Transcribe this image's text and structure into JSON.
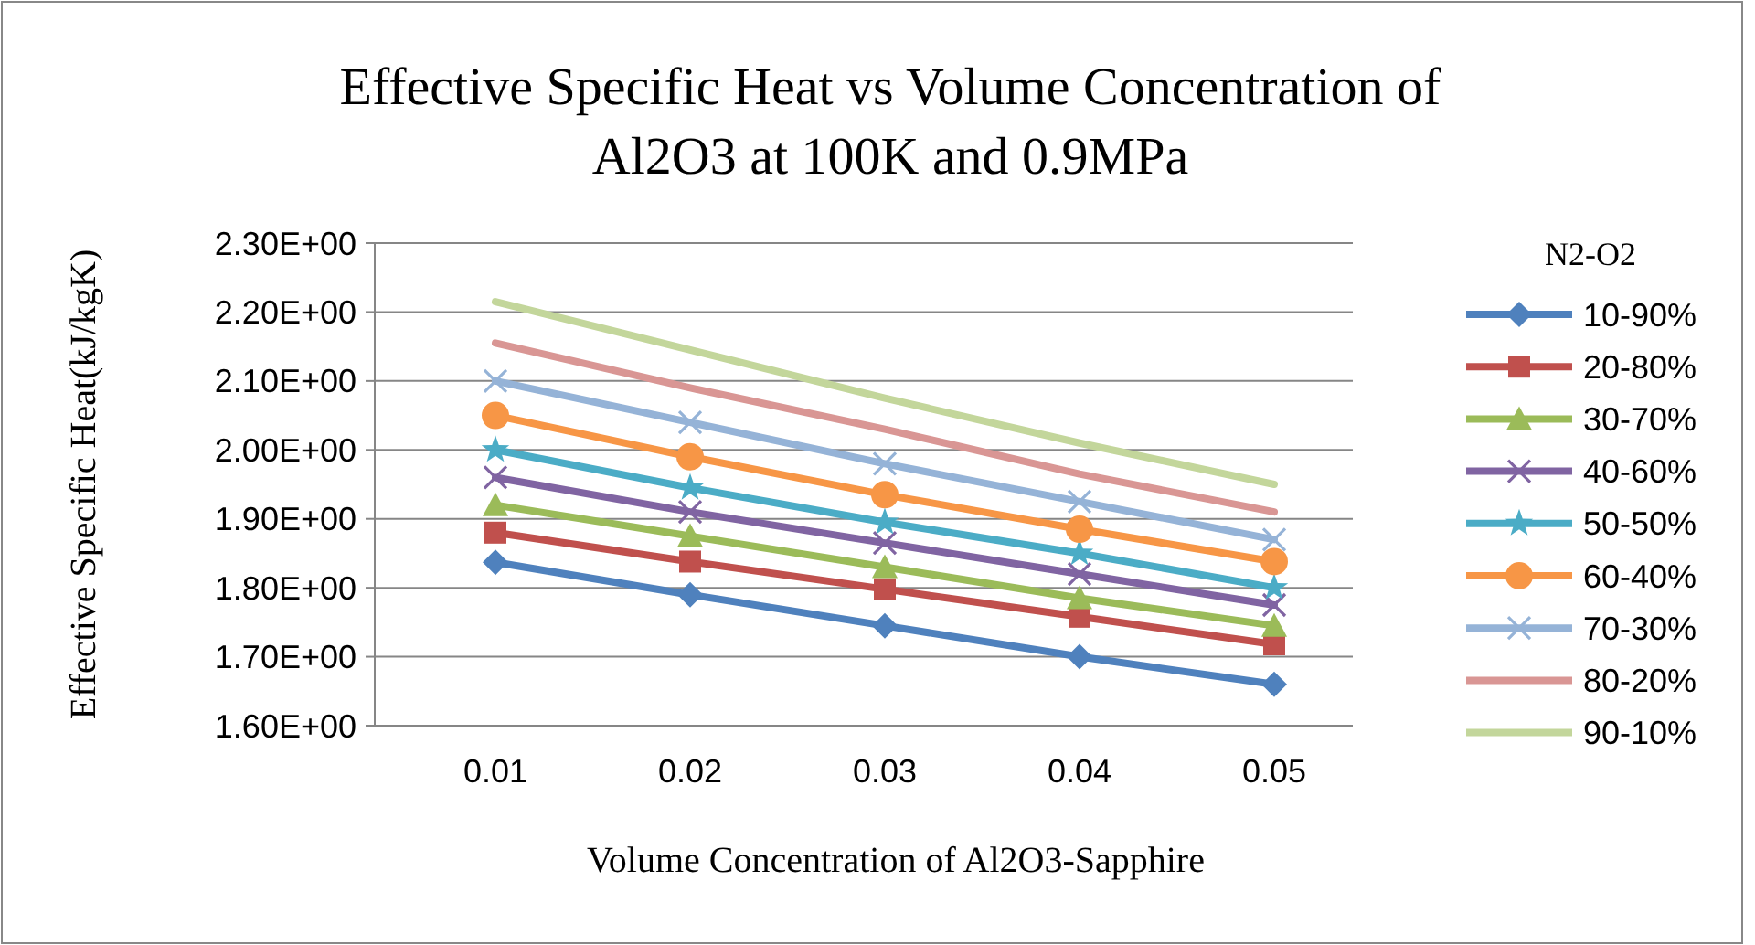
{
  "chart_data": {
    "type": "line",
    "title": "Effective Specific Heat vs Volume Concentration of Al2O3 at 100K and 0.9MPa",
    "xlabel": "Volume Concentration of Al2O3-Sapphire",
    "ylabel": "Effective Specific Heat(kJ/kgK)",
    "legend_title": "N2-O2",
    "categories": [
      "0.01",
      "0.02",
      "0.03",
      "0.04",
      "0.05"
    ],
    "series": [
      {
        "name": "10-90%",
        "color": "#4f81bd",
        "marker": "diamond",
        "values": [
          1.837,
          1.79,
          1.745,
          1.7,
          1.66
        ]
      },
      {
        "name": "20-80%",
        "color": "#c0504d",
        "marker": "square",
        "values": [
          1.88,
          1.838,
          1.798,
          1.758,
          1.718
        ]
      },
      {
        "name": "30-70%",
        "color": "#9bbb59",
        "marker": "triangle",
        "values": [
          1.92,
          1.875,
          1.83,
          1.785,
          1.745
        ]
      },
      {
        "name": "40-60%",
        "color": "#8064a2",
        "marker": "cross",
        "values": [
          1.96,
          1.91,
          1.865,
          1.82,
          1.775
        ]
      },
      {
        "name": "50-50%",
        "color": "#4bacc6",
        "marker": "star",
        "values": [
          2.0,
          1.945,
          1.895,
          1.85,
          1.8
        ]
      },
      {
        "name": "60-40%",
        "color": "#f79646",
        "marker": "circle",
        "values": [
          2.05,
          1.99,
          1.935,
          1.885,
          1.838
        ]
      },
      {
        "name": "70-30%",
        "color": "#95b3d7",
        "marker": "cross",
        "values": [
          2.1,
          2.04,
          1.98,
          1.925,
          1.87
        ]
      },
      {
        "name": "80-20%",
        "color": "#d99694",
        "marker": "none",
        "values": [
          2.155,
          2.09,
          2.03,
          1.965,
          1.91
        ]
      },
      {
        "name": "90-10%",
        "color": "#c3d69b",
        "marker": "none",
        "values": [
          2.215,
          2.145,
          2.075,
          2.01,
          1.95
        ]
      }
    ],
    "ylim": [
      1.6,
      2.3
    ],
    "yticks": [
      {
        "value": 1.6,
        "label": "1.60E+00"
      },
      {
        "value": 1.7,
        "label": "1.70E+00"
      },
      {
        "value": 1.8,
        "label": "1.80E+00"
      },
      {
        "value": 1.9,
        "label": "1.90E+00"
      },
      {
        "value": 2.0,
        "label": "2.00E+00"
      },
      {
        "value": 2.1,
        "label": "2.10E+00"
      },
      {
        "value": 2.2,
        "label": "2.20E+00"
      },
      {
        "value": 2.3,
        "label": "2.30E+00"
      }
    ],
    "grid": "y",
    "legend": "right"
  }
}
